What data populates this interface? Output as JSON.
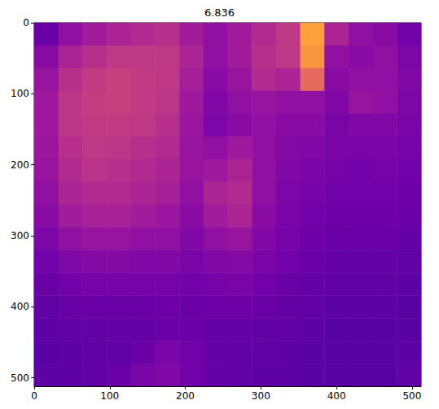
{
  "chart_data": {
    "type": "heatmap",
    "title": "6.836",
    "x": [
      16,
      48,
      80,
      112,
      144,
      176,
      208,
      240,
      272,
      304,
      336,
      368,
      400,
      432,
      464,
      496
    ],
    "y": [
      16,
      48,
      80,
      112,
      144,
      176,
      208,
      240,
      272,
      304,
      336,
      368,
      400,
      432,
      464,
      496
    ],
    "cells": [
      [
        0.2,
        0.3,
        0.35,
        0.38,
        0.4,
        0.42,
        0.35,
        0.3,
        0.35,
        0.4,
        0.45,
        0.78,
        0.38,
        0.3,
        0.28,
        0.22
      ],
      [
        0.28,
        0.38,
        0.42,
        0.45,
        0.45,
        0.45,
        0.38,
        0.3,
        0.35,
        0.42,
        0.45,
        0.75,
        0.3,
        0.28,
        0.3,
        0.25
      ],
      [
        0.32,
        0.42,
        0.46,
        0.48,
        0.46,
        0.45,
        0.36,
        0.28,
        0.32,
        0.4,
        0.38,
        0.62,
        0.28,
        0.3,
        0.3,
        0.26
      ],
      [
        0.34,
        0.44,
        0.47,
        0.48,
        0.46,
        0.44,
        0.34,
        0.26,
        0.3,
        0.32,
        0.3,
        0.3,
        0.26,
        0.32,
        0.3,
        0.25
      ],
      [
        0.34,
        0.44,
        0.46,
        0.46,
        0.45,
        0.42,
        0.33,
        0.25,
        0.28,
        0.3,
        0.28,
        0.28,
        0.24,
        0.26,
        0.26,
        0.24
      ],
      [
        0.33,
        0.42,
        0.45,
        0.44,
        0.42,
        0.4,
        0.32,
        0.3,
        0.34,
        0.3,
        0.27,
        0.26,
        0.24,
        0.24,
        0.24,
        0.23
      ],
      [
        0.32,
        0.4,
        0.43,
        0.42,
        0.4,
        0.38,
        0.32,
        0.34,
        0.38,
        0.3,
        0.26,
        0.24,
        0.23,
        0.22,
        0.23,
        0.22
      ],
      [
        0.3,
        0.38,
        0.4,
        0.4,
        0.38,
        0.36,
        0.3,
        0.38,
        0.4,
        0.3,
        0.25,
        0.23,
        0.22,
        0.22,
        0.22,
        0.21
      ],
      [
        0.28,
        0.35,
        0.37,
        0.37,
        0.35,
        0.33,
        0.28,
        0.35,
        0.38,
        0.28,
        0.24,
        0.22,
        0.21,
        0.21,
        0.21,
        0.2
      ],
      [
        0.25,
        0.3,
        0.32,
        0.32,
        0.3,
        0.3,
        0.26,
        0.3,
        0.32,
        0.26,
        0.23,
        0.21,
        0.2,
        0.2,
        0.2,
        0.19
      ],
      [
        0.22,
        0.26,
        0.27,
        0.27,
        0.26,
        0.26,
        0.24,
        0.26,
        0.27,
        0.24,
        0.22,
        0.2,
        0.19,
        0.19,
        0.19,
        0.18
      ],
      [
        0.2,
        0.22,
        0.23,
        0.23,
        0.23,
        0.23,
        0.22,
        0.23,
        0.24,
        0.22,
        0.2,
        0.19,
        0.18,
        0.18,
        0.18,
        0.17
      ],
      [
        0.18,
        0.2,
        0.2,
        0.2,
        0.2,
        0.21,
        0.2,
        0.21,
        0.21,
        0.2,
        0.19,
        0.18,
        0.17,
        0.17,
        0.17,
        0.16
      ],
      [
        0.17,
        0.18,
        0.18,
        0.19,
        0.19,
        0.2,
        0.2,
        0.19,
        0.19,
        0.18,
        0.18,
        0.17,
        0.16,
        0.16,
        0.16,
        0.16
      ],
      [
        0.16,
        0.17,
        0.18,
        0.18,
        0.2,
        0.24,
        0.22,
        0.19,
        0.18,
        0.18,
        0.17,
        0.16,
        0.16,
        0.16,
        0.16,
        0.17
      ],
      [
        0.17,
        0.17,
        0.18,
        0.2,
        0.24,
        0.26,
        0.22,
        0.19,
        0.18,
        0.17,
        0.17,
        0.16,
        0.16,
        0.16,
        0.16,
        0.18
      ]
    ],
    "zlim": [
      0,
      1
    ],
    "xlim": [
      0,
      512
    ],
    "ylim": [
      512,
      0
    ],
    "xticks": [
      0,
      100,
      200,
      300,
      400,
      500
    ],
    "yticks": [
      0,
      100,
      200,
      300,
      400,
      500
    ]
  }
}
